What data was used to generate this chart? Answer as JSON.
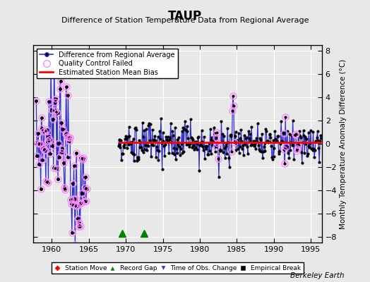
{
  "title": "TAUP",
  "subtitle": "Difference of Station Temperature Data from Regional Average",
  "ylabel_right": "Monthly Temperature Anomaly Difference (°C)",
  "credit": "Berkeley Earth",
  "ylim": [
    -8.5,
    8.5
  ],
  "xlim": [
    1957.5,
    1996.5
  ],
  "xticks": [
    1960,
    1965,
    1970,
    1975,
    1980,
    1985,
    1990,
    1995
  ],
  "yticks": [
    -8,
    -6,
    -4,
    -2,
    0,
    2,
    4,
    6,
    8
  ],
  "bg_color": "#e8e8e8",
  "plot_bg_color": "#e8e8e8",
  "grid_color": "white",
  "line_color": "#3333cc",
  "dot_color": "black",
  "qc_color": "#ff88ff",
  "bias_color": "red",
  "station_move_color": "red",
  "record_gap_color": "green",
  "obs_change_color": "#3333cc",
  "empirical_break_color": "black",
  "bias_value": 0.1,
  "record_gaps": [
    1969.5,
    1972.5
  ],
  "early_start": 1957.9,
  "early_end": 1964.7,
  "late_start": 1969.0,
  "late_end": 1996.4
}
